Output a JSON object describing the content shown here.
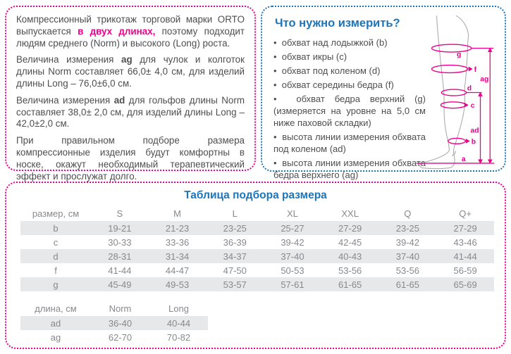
{
  "colors": {
    "pink": "#ec008c",
    "blue": "#1b75bc",
    "body_text": "#4d4e50",
    "table_text": "#87898c",
    "row_shade": "#e7e8e9",
    "leg_outline": "#a9abac"
  },
  "info_box": {
    "p1_pre": "Компрессионный трикотаж торговой марки ORTO выпускается ",
    "p1_highlight": "в двух длинах,",
    "p1_post": " поэтому подходит людям среднего (Norm) и высокого (Long) роста.",
    "p2_pre": "Величина измерения ",
    "p2_bold": "ag",
    "p2_post": " для чулок и колготок длины Norm составляет 66,0± 4,0 см, для изделий длины Long – 76,0±6,0 см.",
    "p3_pre": "Величина измерения ",
    "p3_bold": "ad",
    "p3_post": " для гольфов длины Norm составляет 38,0± 2,0 см, для изделий длины Long – 42,0±2,0 см.",
    "p4": "При правильном подборе размера компрессионные изделия будут комфортны в носке, окажут необходимый терапевтический эффект и прослужат долго."
  },
  "measure_box": {
    "title": "Что нужно измерить?",
    "items": [
      "обхват над лодыжкой (b)",
      "обхват икры (c)",
      "обхват под коленом (d)",
      "обхват середины бедра (f)",
      "обхват бедра верхний (g) (измеряется на уровне на 5,0 см ниже паховой складки)",
      "высота линии измерения обхвата под коленом (ad)",
      "высота линии измерения обхвата бедра верхнего (ag)"
    ],
    "diagram_labels": {
      "g": "g",
      "f": "f",
      "d": "d",
      "c": "c",
      "b": "b",
      "a": "a",
      "ad": "ad",
      "ag": "ag"
    }
  },
  "size_table": {
    "title": "Таблица подбора размера",
    "header": [
      "размер, см",
      "S",
      "M",
      "L",
      "XL",
      "XXL",
      "Q",
      "Q+"
    ],
    "rows": [
      {
        "label": "b",
        "shaded": true,
        "values": [
          "19-21",
          "21-23",
          "23-25",
          "25-27",
          "27-29",
          "23-25",
          "27-29"
        ]
      },
      {
        "label": "c",
        "shaded": false,
        "values": [
          "30-33",
          "33-36",
          "36-39",
          "39-42",
          "42-45",
          "39-42",
          "43-46"
        ]
      },
      {
        "label": "d",
        "shaded": true,
        "values": [
          "28-31",
          "31-34",
          "34-37",
          "37-40",
          "40-43",
          "37-40",
          "41-44"
        ]
      },
      {
        "label": "f",
        "shaded": false,
        "values": [
          "41-44",
          "44-47",
          "47-50",
          "50-53",
          "53-56",
          "53-56",
          "56-59"
        ]
      },
      {
        "label": "g",
        "shaded": true,
        "values": [
          "45-49",
          "49-53",
          "53-57",
          "57-61",
          "61-65",
          "61-65",
          "65-69"
        ]
      }
    ]
  },
  "length_table": {
    "header": [
      "длина, см",
      "Norm",
      "Long"
    ],
    "rows": [
      {
        "label": "ad",
        "shaded": true,
        "values": [
          "36-40",
          "40-44"
        ]
      },
      {
        "label": "ag",
        "shaded": false,
        "values": [
          "62-70",
          "70-82"
        ]
      }
    ]
  }
}
